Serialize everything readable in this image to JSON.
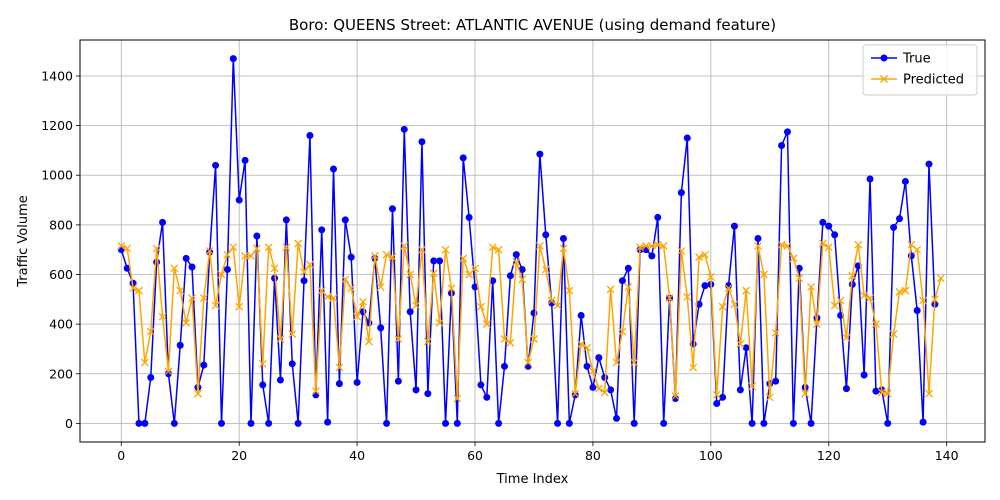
{
  "chart_data": {
    "type": "line",
    "title": "Boro: QUEENS Street: ATLANTIC AVENUE (using demand feature)",
    "xlabel": "Time Index",
    "ylabel": "Traffic Volume",
    "xlim": [
      -7,
      146.5
    ],
    "ylim": [
      -75,
      1545
    ],
    "xticks": [
      0,
      20,
      40,
      60,
      80,
      100,
      120,
      140
    ],
    "yticks": [
      0,
      200,
      400,
      600,
      800,
      1000,
      1200,
      1400
    ],
    "grid": true,
    "legend_position": "top-right",
    "series": [
      {
        "name": "True",
        "color": "#0000ff",
        "marker": "circle",
        "values": [
          700,
          625,
          565,
          0,
          0,
          185,
          650,
          810,
          200,
          0,
          315,
          665,
          630,
          145,
          235,
          690,
          1040,
          0,
          620,
          1470,
          900,
          1060,
          0,
          755,
          155,
          0,
          585,
          175,
          820,
          240,
          0,
          575,
          1160,
          115,
          780,
          5,
          1025,
          160,
          820,
          670,
          165,
          450,
          405,
          665,
          385,
          0,
          865,
          170,
          1185,
          450,
          135,
          1135,
          120,
          655,
          655,
          0,
          525,
          0,
          1070,
          830,
          550,
          155,
          105,
          575,
          0,
          230,
          595,
          680,
          620,
          230,
          445,
          1085,
          760,
          485,
          0,
          745,
          0,
          115,
          435,
          230,
          145,
          265,
          185,
          135,
          20,
          575,
          625,
          0,
          700,
          700,
          675,
          830,
          0,
          505,
          100,
          930,
          1150,
          320,
          480,
          555,
          560,
          80,
          105,
          555,
          795,
          135,
          305,
          0,
          745,
          0,
          160,
          170,
          1120,
          1175,
          0,
          625,
          145,
          0,
          425,
          810,
          795,
          760,
          435,
          140,
          560,
          635,
          195,
          985,
          130,
          135,
          0,
          790,
          825,
          975,
          675,
          455,
          5,
          1045,
          480
        ]
      },
      {
        "name": "Predicted",
        "color": "#ffa500",
        "marker": "x",
        "values": [
          715,
          705,
          545,
          535,
          245,
          370,
          705,
          430,
          210,
          625,
          535,
          405,
          505,
          120,
          505,
          695,
          475,
          600,
          680,
          710,
          470,
          675,
          675,
          705,
          240,
          710,
          625,
          340,
          710,
          360,
          725,
          610,
          640,
          130,
          535,
          510,
          505,
          225,
          580,
          545,
          430,
          490,
          330,
          675,
          550,
          680,
          670,
          340,
          715,
          600,
          475,
          700,
          330,
          605,
          405,
          700,
          545,
          100,
          665,
          600,
          625,
          470,
          400,
          710,
          700,
          340,
          325,
          650,
          580,
          245,
          340,
          715,
          620,
          495,
          475,
          705,
          535,
          120,
          320,
          305,
          210,
          140,
          125,
          540,
          245,
          370,
          550,
          245,
          710,
          715,
          715,
          720,
          715,
          505,
          110,
          695,
          510,
          225,
          670,
          680,
          590,
          115,
          470,
          545,
          480,
          320,
          535,
          150,
          715,
          600,
          105,
          365,
          720,
          715,
          665,
          585,
          120,
          550,
          400,
          725,
          710,
          475,
          495,
          345,
          595,
          720,
          515,
          505,
          400,
          125,
          120,
          360,
          530,
          535,
          720,
          700,
          495,
          120,
          500,
          585
        ]
      }
    ]
  }
}
